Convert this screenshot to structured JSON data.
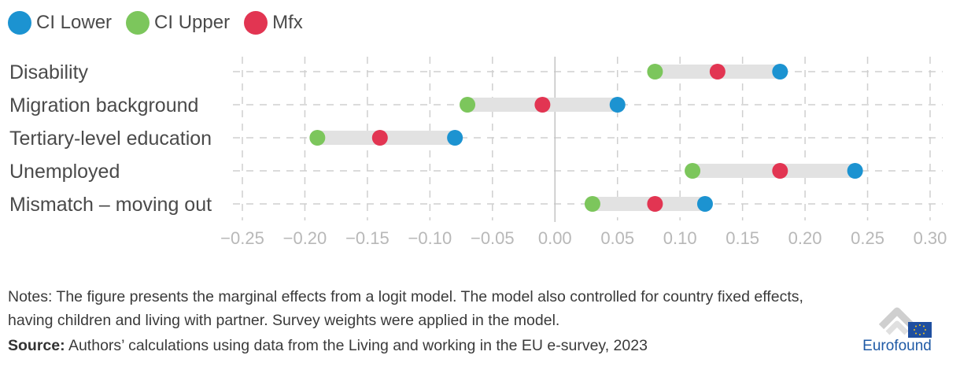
{
  "legend": {
    "items": [
      {
        "label": "CI Lower",
        "color": "#1c93d1"
      },
      {
        "label": "CI Upper",
        "color": "#7cc65c"
      },
      {
        "label": "Mfx",
        "color": "#e23552"
      }
    ]
  },
  "chart_data": {
    "type": "dumbbell",
    "categories": [
      "Disability",
      "Migration background",
      "Tertiary-level education",
      "Unemployed",
      "Mismatch – moving out"
    ],
    "series": [
      {
        "name": "CI Lower",
        "color": "#1c93d1",
        "values": [
          0.18,
          0.05,
          -0.08,
          0.24,
          0.12
        ]
      },
      {
        "name": "CI Upper",
        "color": "#7cc65c",
        "values": [
          0.08,
          -0.07,
          -0.19,
          0.11,
          0.03
        ]
      },
      {
        "name": "Mfx",
        "color": "#e23552",
        "values": [
          0.13,
          -0.01,
          -0.14,
          0.18,
          0.08
        ]
      }
    ],
    "x_ticks": [
      "−0.25",
      "−0.20",
      "−0.15",
      "−0.10",
      "−0.05",
      "0.00",
      "0.05",
      "0.10",
      "0.15",
      "0.20",
      "0.25",
      "0.30"
    ],
    "x_tick_values": [
      -0.25,
      -0.2,
      -0.15,
      -0.1,
      -0.05,
      0,
      0.05,
      0.1,
      0.15,
      0.2,
      0.25,
      0.3
    ],
    "xlim": [
      -0.25,
      0.3
    ],
    "grid": true,
    "legend_position": "top-left"
  },
  "notes": "Notes: The figure presents the marginal effects from a logit model. The model also controlled for country fixed effects, having children and living with partner. Survey weights were applied in the model.",
  "source": {
    "label": "Source:",
    "text": " Authors’ calculations using data from the Living and working in the EU e-survey, 2023"
  },
  "logo": {
    "text": "Eurofound"
  }
}
